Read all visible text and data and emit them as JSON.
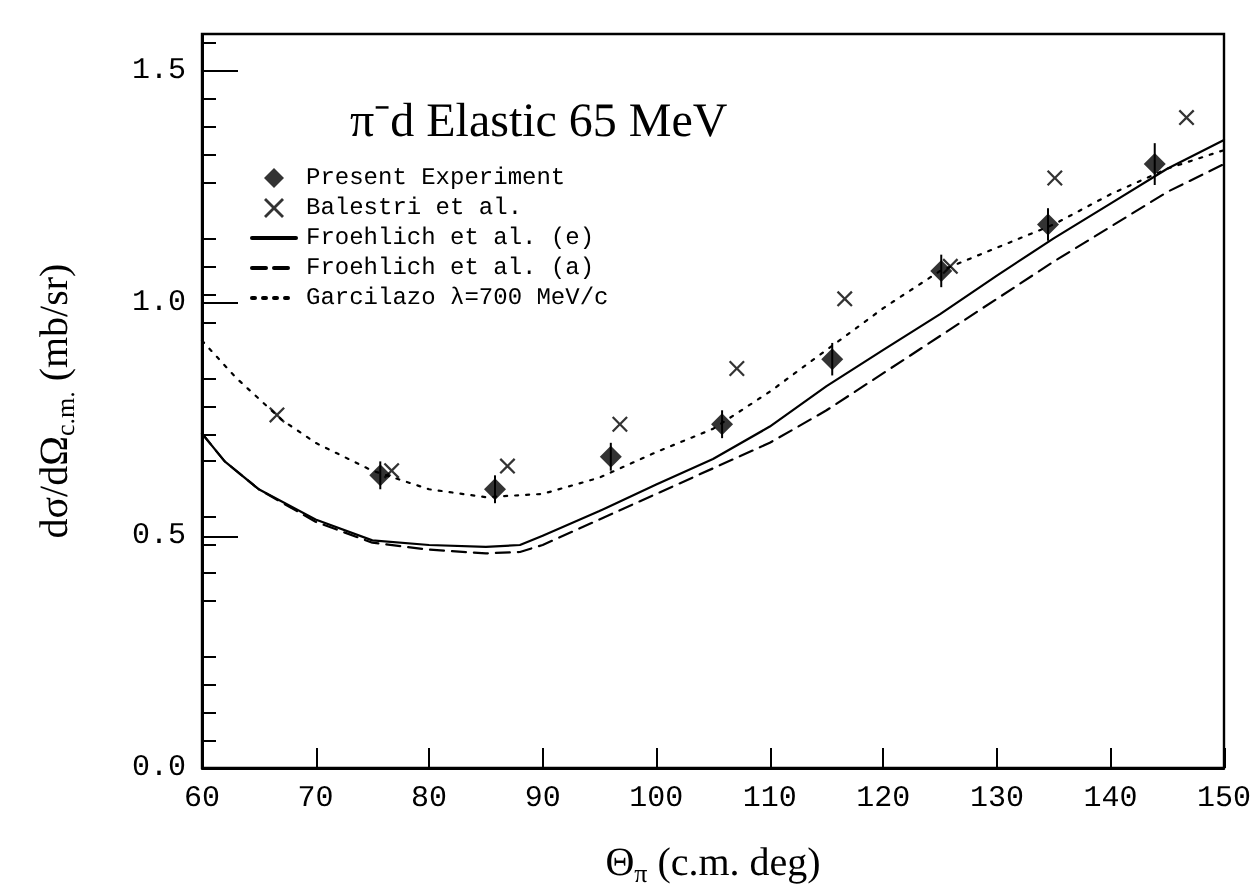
{
  "chart_data": {
    "type": "scatter",
    "title": "π⁻d Elastic 65 MeV",
    "xlabel": "Θ$_{π}$ (c.m. deg)",
    "ylabel": "dσ/dΩ$_{c.m.}$ (mb/sr)",
    "xlim": [
      60,
      150
    ],
    "xticks": [
      60,
      70,
      80,
      90,
      100,
      110,
      120,
      130,
      140,
      150
    ],
    "ylim": [
      0,
      1.58
    ],
    "yticks": [
      {
        "value": 0,
        "label": "0.0"
      },
      {
        "value": 0.5,
        "label": "0.5"
      },
      {
        "value": 1,
        "label": "1.0"
      },
      {
        "value": 1.5,
        "label": "1.5"
      }
    ],
    "grid": false,
    "legend": "top left",
    "series": [
      {
        "name": "Present Experiment",
        "marker": "diamond",
        "color": "#000000",
        "x": [
          75.7,
          85.8,
          96.0,
          105.8,
          115.5,
          125.1,
          134.5,
          143.9
        ],
        "values": [
          0.63,
          0.6,
          0.67,
          0.74,
          0.88,
          1.07,
          1.17,
          1.3
        ],
        "errors": [
          0.03,
          0.03,
          0.03,
          0.03,
          0.035,
          0.035,
          0.035,
          0.045
        ]
      },
      {
        "name": "Balestri et al.",
        "marker": "cross",
        "color": "#000000",
        "x": [
          66.6,
          76.7,
          86.9,
          96.8,
          107.1,
          116.6,
          125.9,
          135.1,
          146.7
        ],
        "values": [
          0.76,
          0.64,
          0.65,
          0.74,
          0.86,
          1.01,
          1.08,
          1.27,
          1.4
        ]
      },
      {
        "name": "Froehlich et al. (e)",
        "type": "line",
        "marker": "none",
        "line_style": "solid",
        "color": "#000000",
        "x": [
          60,
          62,
          65,
          70,
          75,
          80,
          85,
          88,
          90,
          95,
          100,
          105,
          110,
          115,
          120,
          125,
          130,
          135,
          140,
          145,
          150
        ],
        "values": [
          0.72,
          0.66,
          0.6,
          0.535,
          0.49,
          0.48,
          0.476,
          0.48,
          0.5,
          0.553,
          0.61,
          0.665,
          0.735,
          0.822,
          0.9,
          0.977,
          1.06,
          1.14,
          1.215,
          1.29,
          1.352
        ]
      },
      {
        "name": "Froehlich et al. (a)",
        "type": "line",
        "marker": "none",
        "line_style": "dashed",
        "color": "#000000",
        "x": [
          60,
          62,
          65,
          70,
          75,
          80,
          85,
          88,
          90,
          95,
          100,
          105,
          110,
          115,
          120,
          125,
          130,
          135,
          140,
          145,
          150
        ],
        "values": [
          0.72,
          0.66,
          0.6,
          0.53,
          0.485,
          0.47,
          0.462,
          0.465,
          0.48,
          0.535,
          0.59,
          0.645,
          0.7,
          0.77,
          0.85,
          0.93,
          1.01,
          1.09,
          1.165,
          1.24,
          1.3
        ]
      },
      {
        "name": "Garcilazo λ=700 MeV/c",
        "type": "line",
        "marker": "none",
        "line_style": "dotted",
        "color": "#000000",
        "x": [
          60,
          63,
          67,
          70,
          75,
          80,
          85,
          90,
          95,
          100,
          105,
          110,
          115,
          120,
          125,
          130,
          135,
          140,
          145,
          150
        ],
        "values": [
          0.92,
          0.84,
          0.75,
          0.7,
          0.64,
          0.6,
          0.583,
          0.59,
          0.625,
          0.68,
          0.73,
          0.81,
          0.9,
          0.99,
          1.07,
          1.12,
          1.17,
          1.235,
          1.29,
          1.33
        ]
      }
    ]
  }
}
